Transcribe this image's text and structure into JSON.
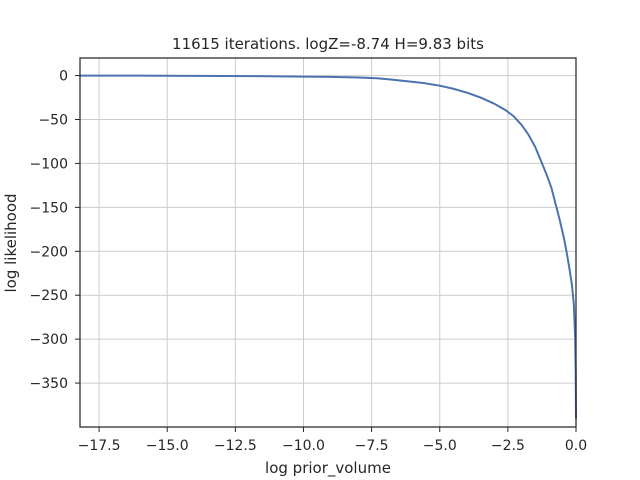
{
  "chart_data": {
    "type": "line",
    "title": "11615 iterations. logZ=-8.74 H=9.83 bits",
    "xlabel": "log prior_volume",
    "ylabel": "log likelihood",
    "xlim": [
      -18.2,
      0.0
    ],
    "ylim": [
      -400,
      20
    ],
    "x_ticks": [
      -17.5,
      -15.0,
      -12.5,
      -10.0,
      -7.5,
      -5.0,
      -2.5,
      0.0
    ],
    "x_tick_labels": [
      "−17.5",
      "−15.0",
      "−12.5",
      "−10.0",
      "−7.5",
      "−5.0",
      "−2.5",
      "0.0"
    ],
    "y_ticks": [
      0,
      -50,
      -100,
      -150,
      -200,
      -250,
      -300,
      -350
    ],
    "y_tick_labels": [
      "0",
      "−50",
      "−100",
      "−150",
      "−200",
      "−250",
      "−300",
      "−350"
    ],
    "grid": true,
    "line_color": "#4c72b0",
    "series": [
      {
        "x": [
          -18.2,
          -16.0,
          -14.0,
          -12.0,
          -10.5,
          -9.0,
          -8.0,
          -7.3,
          -6.8,
          -6.2,
          -5.6,
          -5.0,
          -4.5,
          -4.0,
          -3.5,
          -3.0,
          -2.6,
          -2.3,
          -2.0,
          -1.75,
          -1.5,
          -1.3,
          -1.1,
          -0.9,
          -0.75,
          -0.6,
          -0.45,
          -0.35,
          -0.25,
          -0.15,
          -0.08,
          -0.03,
          -0.01,
          0.0
        ],
        "y": [
          0,
          0,
          -0.3,
          -0.6,
          -1,
          -1.5,
          -2.2,
          -3,
          -4.5,
          -6.5,
          -8.5,
          -11.5,
          -15,
          -19.5,
          -25,
          -32,
          -39,
          -46,
          -56,
          -67,
          -81,
          -96,
          -111,
          -128,
          -146,
          -164,
          -184,
          -200,
          -218,
          -238,
          -260,
          -300,
          -340,
          -390
        ]
      }
    ]
  }
}
